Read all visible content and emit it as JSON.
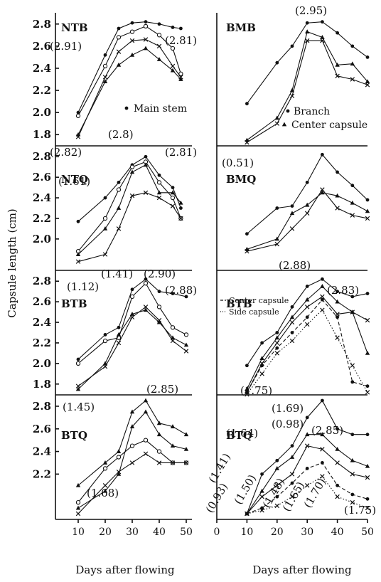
{
  "chart_data": {
    "type": "line",
    "ylabel": "Capsule length (cm)",
    "xlabel_left": "Days after flowing",
    "xlabel_right": "Days after flowing",
    "x_ticks_left": [
      "10",
      "20",
      "30",
      "40",
      "50"
    ],
    "x_ticks_right": [
      "0",
      "10",
      "20",
      "30",
      "40",
      "50"
    ],
    "panels": [
      {
        "id": "NTB",
        "label": "NTB",
        "ylim": [
          1.75,
          2.85
        ],
        "yticks": [
          1.8,
          2.0,
          2.2,
          2.4,
          2.6,
          2.8
        ],
        "x": [
          10,
          20,
          25,
          30,
          35,
          40,
          45,
          48
        ],
        "series": [
          {
            "marker": "dot",
            "values": [
              2.0,
              2.52,
              2.76,
              2.81,
              2.82,
              2.8,
              2.77,
              2.76
            ]
          },
          {
            "marker": "circle",
            "values": [
              1.97,
              2.42,
              2.68,
              2.73,
              2.78,
              2.7,
              2.58,
              2.35
            ]
          },
          {
            "marker": "cross",
            "values": [
              1.78,
              2.32,
              2.55,
              2.65,
              2.66,
              2.6,
              2.42,
              2.32
            ]
          },
          {
            "marker": "triangle",
            "values": [
              1.8,
              2.28,
              2.43,
              2.52,
              2.58,
              2.48,
              2.38,
              2.3
            ]
          }
        ],
        "annotations": [
          "(2.91)",
          "(2.81)"
        ],
        "legend": [
          "Main stem"
        ]
      },
      {
        "id": "BMB",
        "label": "BMB",
        "ylim": [
          1.75,
          2.85
        ],
        "x": [
          10,
          20,
          25,
          30,
          35,
          40,
          45,
          50
        ],
        "series": [
          {
            "marker": "dot",
            "values": [
              2.08,
              2.45,
              2.6,
              2.81,
              2.82,
              2.72,
              2.6,
              2.5
            ]
          },
          {
            "marker": "triangle",
            "values": [
              1.75,
              1.95,
              2.2,
              2.73,
              2.68,
              2.43,
              2.44,
              2.28
            ]
          },
          {
            "marker": "cross",
            "values": [
              1.73,
              1.9,
              2.15,
              2.65,
              2.65,
              2.33,
              2.3,
              2.25
            ]
          }
        ],
        "annotations": [
          "(2.95)"
        ],
        "legend": [
          "Branch",
          "Center capsule"
        ]
      },
      {
        "id": "NTQ",
        "label": "NTQ",
        "ylim": [
          1.75,
          2.85
        ],
        "yticks": [
          2.0,
          2.2,
          2.4,
          2.6,
          2.8
        ],
        "x": [
          10,
          20,
          25,
          30,
          35,
          40,
          45,
          48
        ],
        "series": [
          {
            "marker": "dot",
            "values": [
              2.17,
              2.4,
              2.55,
              2.72,
              2.8,
              2.62,
              2.5,
              2.3
            ]
          },
          {
            "marker": "circle",
            "values": [
              1.88,
              2.2,
              2.48,
              2.7,
              2.75,
              2.55,
              2.4,
              2.2
            ]
          },
          {
            "marker": "triangle",
            "values": [
              1.85,
              2.1,
              2.3,
              2.65,
              2.72,
              2.45,
              2.45,
              2.35
            ]
          },
          {
            "marker": "cross",
            "values": [
              1.78,
              1.85,
              2.1,
              2.42,
              2.45,
              2.4,
              2.32,
              2.2
            ]
          }
        ],
        "annotations": [
          "(2.82)",
          "(2.8)",
          "(2.81)",
          "(1.61)",
          "(1.41)",
          "(2.90)"
        ]
      },
      {
        "id": "BMQ",
        "label": "BMQ",
        "ylim": [
          1.75,
          2.85
        ],
        "x": [
          10,
          20,
          25,
          30,
          35,
          40,
          45,
          50
        ],
        "series": [
          {
            "marker": "dot",
            "values": [
              2.05,
              2.3,
              2.32,
              2.55,
              2.82,
              2.65,
              2.52,
              2.38
            ]
          },
          {
            "marker": "triangle",
            "values": [
              1.9,
              2.0,
              2.25,
              2.33,
              2.45,
              2.42,
              2.35,
              2.27
            ]
          },
          {
            "marker": "cross",
            "values": [
              1.88,
              1.95,
              2.1,
              2.25,
              2.48,
              2.3,
              2.23,
              2.2
            ]
          }
        ],
        "annotations": [
          "(0.51)",
          "(2.85)"
        ]
      },
      {
        "id": "BTB",
        "label": "BTB",
        "ylim": [
          1.75,
          2.85
        ],
        "yticks": [
          1.8,
          2.0,
          2.2,
          2.4,
          2.6,
          2.8
        ],
        "x": [
          10,
          20,
          25,
          30,
          35,
          40,
          45,
          50
        ],
        "series": [
          {
            "marker": "dot",
            "values": [
              2.04,
              2.28,
              2.35,
              2.72,
              2.82,
              2.7,
              2.68,
              2.65
            ]
          },
          {
            "marker": "circle",
            "values": [
              2.0,
              2.22,
              2.25,
              2.65,
              2.78,
              2.55,
              2.35,
              2.28
            ]
          },
          {
            "marker": "cross",
            "values": [
              1.78,
              1.97,
              2.2,
              2.45,
              2.55,
              2.42,
              2.22,
              2.12
            ]
          },
          {
            "marker": "triangle",
            "values": [
              1.75,
              2.0,
              2.28,
              2.48,
              2.52,
              2.4,
              2.25,
              2.18
            ]
          }
        ],
        "annotations": [
          "(1.12)",
          "(2.88)"
        ]
      },
      {
        "id": "BTB-right",
        "label": "BTB",
        "ylim": [
          1.75,
          2.85
        ],
        "x": [
          10,
          15,
          20,
          25,
          30,
          35,
          40,
          45,
          50
        ],
        "series": [
          {
            "marker": "dot",
            "values": [
              1.98,
              2.2,
              2.3,
              2.55,
              2.75,
              2.82,
              2.7,
              2.65,
              2.68
            ]
          },
          {
            "marker": "triangle",
            "values": [
              1.75,
              2.05,
              2.25,
              2.45,
              2.62,
              2.75,
              2.6,
              2.5,
              2.1
            ]
          },
          {
            "marker": "cross",
            "values": [
              1.72,
              2.0,
              2.2,
              2.4,
              2.55,
              2.65,
              2.48,
              2.5,
              2.42
            ]
          },
          {
            "marker": "dot",
            "style": "dashed",
            "values": [
              1.72,
              1.98,
              2.15,
              2.3,
              2.45,
              2.62,
              2.45,
              1.82,
              1.78
            ]
          },
          {
            "marker": "cross",
            "style": "dotted",
            "values": [
              1.7,
              1.9,
              2.1,
              2.22,
              2.38,
              2.52,
              2.25,
              1.98,
              1.72
            ]
          }
        ],
        "annotations": [
          "(2.88)",
          "(2.83)",
          "(1.75)",
          "(2.85)"
        ],
        "legend": [
          "Center capsule",
          "Side capsule"
        ]
      },
      {
        "id": "BTQ",
        "label": "BTQ",
        "ylim": [
          1.85,
          2.85
        ],
        "yticks": [
          2.2,
          2.4,
          2.6,
          2.8
        ],
        "x": [
          10,
          20,
          25,
          30,
          35,
          40,
          45,
          50
        ],
        "series": [
          {
            "marker": "triangle",
            "values": [
              2.1,
              2.3,
              2.4,
              2.75,
              2.85,
              2.65,
              2.62,
              2.55
            ]
          },
          {
            "marker": "circle",
            "values": [
              1.95,
              2.25,
              2.35,
              2.45,
              2.5,
              2.4,
              2.3,
              2.3
            ]
          },
          {
            "marker": "cross",
            "values": [
              1.85,
              2.1,
              2.22,
              2.3,
              2.38,
              2.3,
              2.3,
              2.3
            ]
          },
          {
            "marker": "triangle",
            "values": [
              1.9,
              2.05,
              2.2,
              2.62,
              2.75,
              2.55,
              2.45,
              2.42
            ]
          }
        ],
        "annotations": [
          "(1.45)",
          "(2.85)",
          "(1.68)"
        ]
      },
      {
        "id": "BTQ-right",
        "label": "BTQ",
        "ylim": [
          1.85,
          2.85
        ],
        "x": [
          10,
          15,
          20,
          25,
          30,
          35,
          40,
          45,
          50
        ],
        "series": [
          {
            "marker": "dot",
            "values": [
              1.85,
              2.2,
              2.32,
              2.45,
              2.7,
              2.85,
              2.6,
              2.55,
              2.55
            ]
          },
          {
            "marker": "triangle",
            "values": [
              1.85,
              2.05,
              2.25,
              2.35,
              2.55,
              2.55,
              2.42,
              2.32,
              2.27
            ]
          },
          {
            "marker": "cross",
            "values": [
              1.85,
              2.0,
              2.1,
              2.2,
              2.45,
              2.42,
              2.3,
              2.2,
              2.17
            ]
          },
          {
            "marker": "dot",
            "style": "dashed",
            "values": [
              1.85,
              1.9,
              2.0,
              2.12,
              2.25,
              2.3,
              2.1,
              2.02,
              1.98
            ]
          },
          {
            "marker": "cross",
            "style": "dotted",
            "values": [
              1.85,
              1.88,
              1.92,
              2.0,
              2.1,
              2.18,
              2.0,
              1.95,
              1.9
            ]
          }
        ],
        "annotations": [
          "(1.69)",
          "(0.98)",
          "(1.64)",
          "(1.41)",
          "(0.93)",
          "(1.50)",
          "(1.48)",
          "(1.65)",
          "(1.70)",
          "(1.75)"
        ]
      }
    ]
  }
}
